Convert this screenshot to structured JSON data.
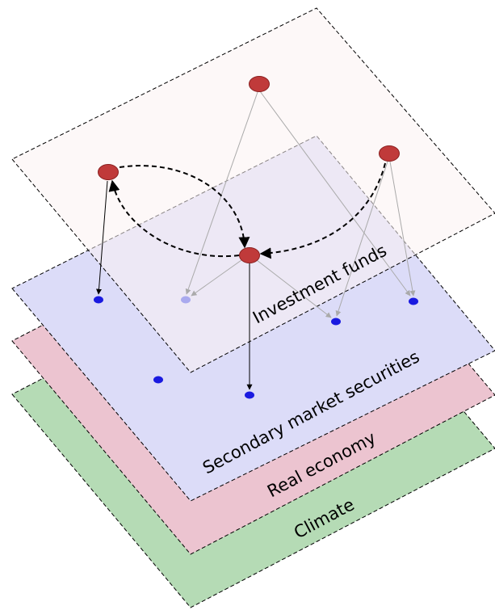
{
  "layers": {
    "climate": {
      "label": "Climate",
      "color": "#b5dbb5"
    },
    "real_economy": {
      "label": "Real economy",
      "color": "#ecc4d0"
    },
    "secondary_market": {
      "label": "Secondary market securities",
      "color": "#dcdcf8"
    },
    "investment_funds": {
      "label": "Investment funds",
      "color": "#fcf3f3"
    }
  },
  "node_colors": {
    "fund": "#c03a3a",
    "fund_outline": "#8a2020",
    "security": "#1a1ae0",
    "security_hidden": "#a9a9ee"
  }
}
